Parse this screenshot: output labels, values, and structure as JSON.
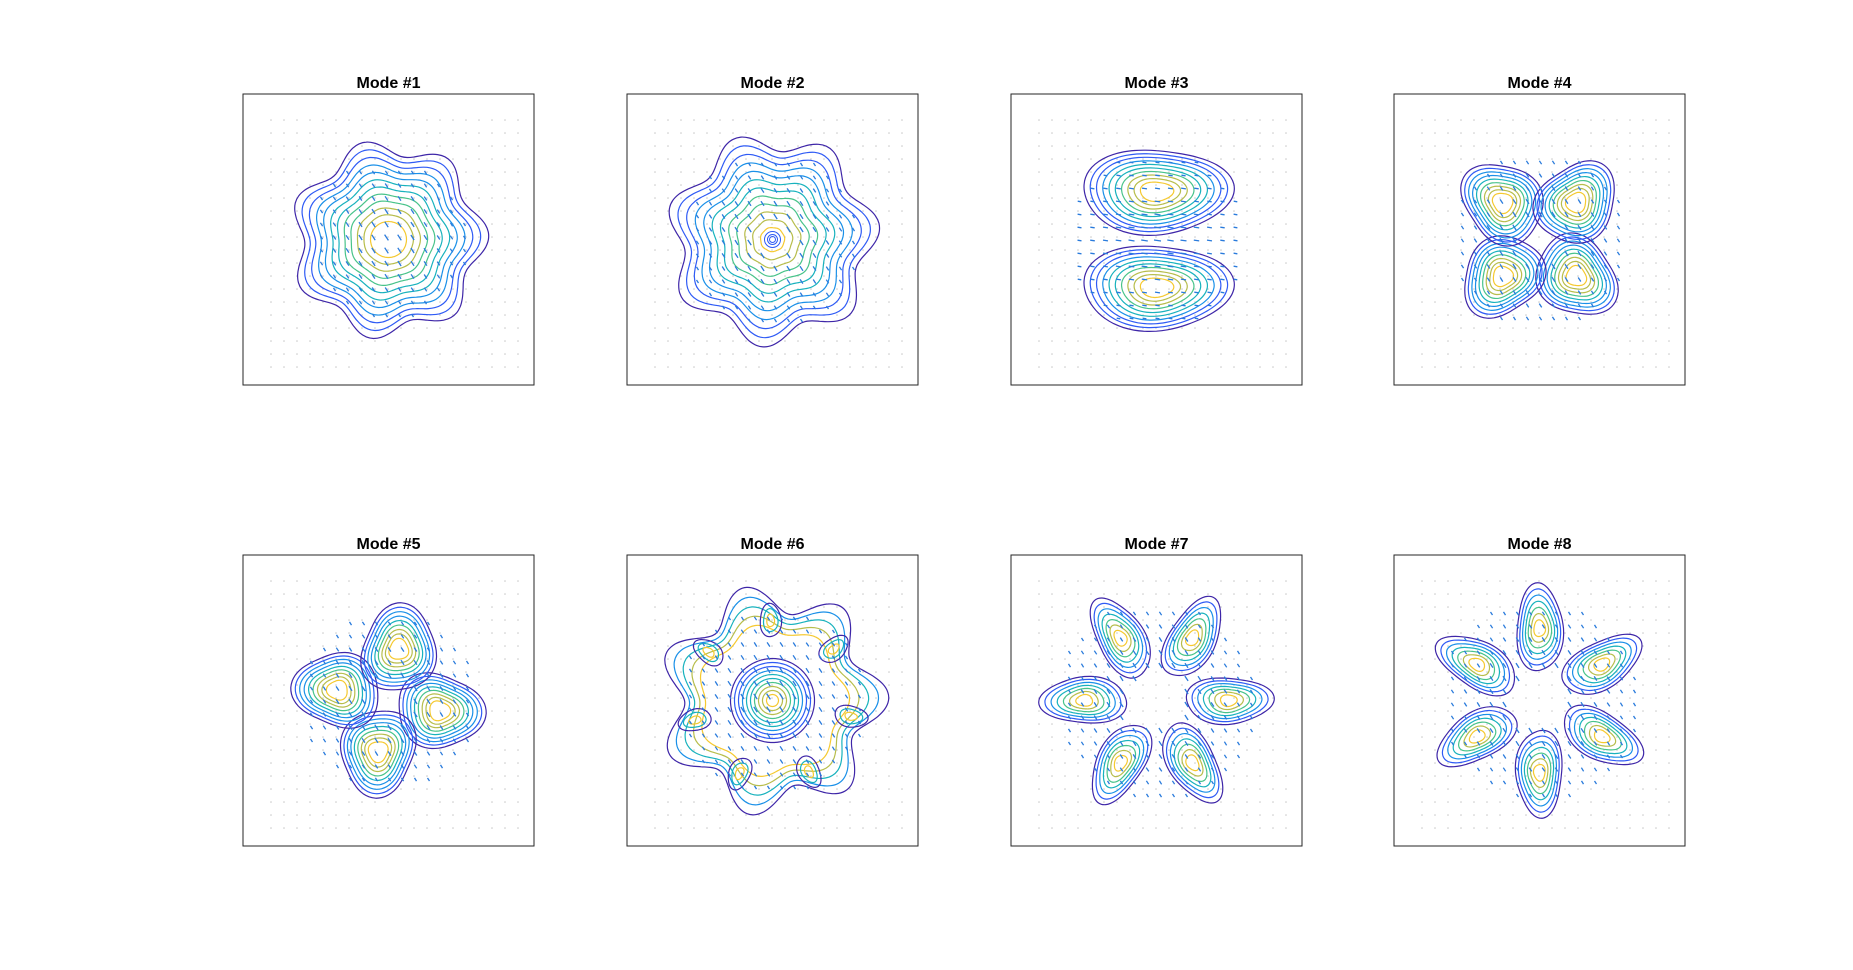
{
  "figure": {
    "background": "#ffffff",
    "colormap": [
      "#3e26a8",
      "#2f5bf5",
      "#1a90e8",
      "#18b2bd",
      "#48c38a",
      "#b7bd4b",
      "#f5c930"
    ],
    "quiver_color": "#2a7bdc",
    "grid_dot_color": "#c8c8c8",
    "axes_color": "#262626"
  },
  "chart_data": [
    {
      "type": "contour",
      "title": "Mode #1",
      "pattern": "single-lobe",
      "lobes": 1,
      "center_ring": false,
      "petals": 7,
      "quiver": true,
      "grid": false,
      "legend": "none"
    },
    {
      "type": "contour",
      "title": "Mode #2",
      "pattern": "vortex",
      "lobes": 1,
      "center_ring": false,
      "petals": 7,
      "quiver": true,
      "grid": false,
      "legend": "none"
    },
    {
      "type": "contour",
      "title": "Mode #3",
      "pattern": "two-lobe",
      "lobes": 2,
      "center_ring": false,
      "petals": 7,
      "quiver": true,
      "grid": false,
      "legend": "none"
    },
    {
      "type": "contour",
      "title": "Mode #4",
      "pattern": "four-lobe",
      "lobes": 4,
      "center_ring": false,
      "petals": 7,
      "quiver": true,
      "grid": false,
      "legend": "none"
    },
    {
      "type": "contour",
      "title": "Mode #5",
      "pattern": "four-lobe-rotated",
      "lobes": 4,
      "center_ring": false,
      "petals": 7,
      "quiver": true,
      "grid": false,
      "legend": "none"
    },
    {
      "type": "contour",
      "title": "Mode #6",
      "pattern": "ring-with-petals",
      "lobes": 7,
      "center_ring": true,
      "petals": 7,
      "quiver": true,
      "grid": false,
      "legend": "none"
    },
    {
      "type": "contour",
      "title": "Mode #7",
      "pattern": "six-lobe",
      "lobes": 6,
      "center_ring": false,
      "petals": 7,
      "quiver": true,
      "grid": false,
      "legend": "none"
    },
    {
      "type": "contour",
      "title": "Mode #8",
      "pattern": "six-lobe-rotated",
      "lobes": 6,
      "center_ring": false,
      "petals": 7,
      "quiver": true,
      "grid": false,
      "legend": "none"
    }
  ]
}
